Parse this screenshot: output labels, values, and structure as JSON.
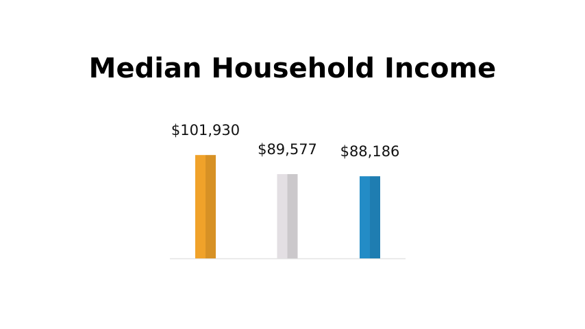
{
  "chart_data": {
    "type": "bar",
    "title": "Median Household Income",
    "categories": [
      null,
      null,
      null
    ],
    "values": [
      101930,
      89577,
      88186
    ],
    "value_labels": [
      "$101,930",
      "$89,577",
      "$88,186"
    ],
    "colors": [
      "#f0a22a",
      "#e3dfe3",
      "#238cc6"
    ],
    "ylim": [
      35000,
      110000
    ]
  }
}
